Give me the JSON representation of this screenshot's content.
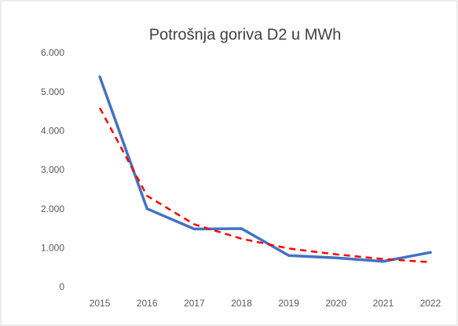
{
  "chart_data": {
    "type": "line",
    "title": "Potrošnja goriva D2 u MWh",
    "categories": [
      "2015",
      "2016",
      "2017",
      "2018",
      "2019",
      "2020",
      "2021",
      "2022"
    ],
    "series": [
      {
        "color": "#4472c4",
        "values": [
          5400,
          2020,
          1500,
          1510,
          820,
          760,
          670,
          900
        ]
      },
      {
        "color": "#ff0000",
        "dashed": true,
        "values": [
          4600,
          2350,
          1620,
          1250,
          1000,
          850,
          730,
          650
        ]
      }
    ],
    "ylim": [
      0,
      6000
    ],
    "yticks": [
      0,
      {
        "value": 1000,
        "label": "1.000"
      },
      {
        "value": 2000,
        "label": "2.000"
      },
      {
        "value": 3000,
        "label": "3.000"
      },
      {
        "value": 4000,
        "label": "4.000"
      },
      {
        "value": 5000,
        "label": "5.000"
      },
      {
        "value": 6000,
        "label": "6.000"
      }
    ],
    "grid": false
  }
}
